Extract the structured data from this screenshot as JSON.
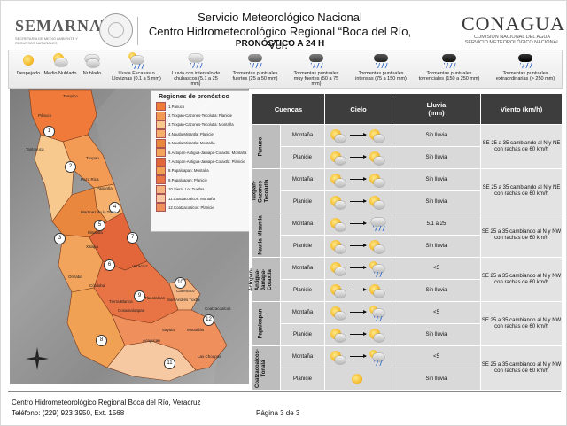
{
  "header": {
    "org_left": "SEMARNAT",
    "org_left_sub": "SECRETARÍA DE MEDIO AMBIENTE Y RECURSOS NATURALES",
    "title_line1": "Servicio Meteorológico Nacional",
    "title_line2": "Centro Hidrometeorológico Regional “Boca del Río, Ver.”",
    "title_line3": "PRONÓSTICO A 24 H",
    "org_right": "CONAGUA",
    "org_right_sub": "COMISIÓN NACIONAL DEL AGUA SERVICIO METEOROLÓGICO NACIONAL"
  },
  "legend": [
    {
      "label": "Despejado",
      "icon": "sun-icon"
    },
    {
      "label": "Medio Nublado",
      "icon": "partly-cloudy-icon"
    },
    {
      "label": "Nublado",
      "icon": "cloudy-icon"
    },
    {
      "label": "Lluvia Escasas o Lloviznas (0.1 a 5 mm)",
      "icon": "drizzle-icon"
    },
    {
      "label": "Lluvia con intervalo de chubascos (5.1 a 25 mm)",
      "icon": "showers-icon"
    },
    {
      "label": "Tormentas puntuales fuertes (25 a 50 mm)",
      "icon": "storm-strong-icon"
    },
    {
      "label": "Tormentas puntuales muy fuertes (50 a 75 mm)",
      "icon": "storm-very-strong-icon"
    },
    {
      "label": "Tormentas puntuales intensas (75 a 150 mm)",
      "icon": "storm-intense-icon"
    },
    {
      "label": "Tormentas puntuales torrenciales (150 a 250 mm)",
      "icon": "storm-torrential-icon"
    },
    {
      "label": "Tormentas puntuales extraordinarias (> 250 mm)",
      "icon": "storm-extraordinary-icon"
    }
  ],
  "map": {
    "legend_title": "Regiones de pronóstico",
    "regions": [
      {
        "label": "1.Pánuco",
        "color": "#f07a3a"
      },
      {
        "label": "2.Tuxpan-Cazones-Tecolutla: Planicie",
        "color": "#f39a55"
      },
      {
        "label": "3.Tuxpan-Cazones-Tecolutla: Montaña",
        "color": "#f7c98f"
      },
      {
        "label": "4.Nautla-Misantla: Planicie",
        "color": "#f5b06e"
      },
      {
        "label": "5.Nautla-Misantla: Montaña",
        "color": "#e8873d"
      },
      {
        "label": "6.Actopan-Antigua-Jamapa-Cotaxtla: Montaña",
        "color": "#f2a45c"
      },
      {
        "label": "7.Actopan-Antigua-Jamapa-Cotaxtla: Planicie",
        "color": "#e2663a"
      },
      {
        "label": "8.Papaloapan: Montaña",
        "color": "#f0a154"
      },
      {
        "label": "9.Papaloapan: Planicie",
        "color": "#e87446"
      },
      {
        "label": "10.Sierra Los Tuxtlas",
        "color": "#f4b582"
      },
      {
        "label": "11.Coatzacoalcos: Montaña",
        "color": "#f7c9a2"
      },
      {
        "label": "12.Coatzacoalcos: Planicie",
        "color": "#ef8f5c"
      }
    ],
    "region_numbers": [
      "1",
      "2",
      "3",
      "4",
      "5",
      "6",
      "7",
      "8",
      "9",
      "10",
      "11",
      "12"
    ],
    "places": [
      "Pánuco",
      "Tampico",
      "Tantoyuca",
      "Tuxpan",
      "Poza Rica",
      "Papantla",
      "Martínez de la Torre",
      "Misantla",
      "Xalapa",
      "Veracruz",
      "Orizaba",
      "Córdoba",
      "Cosamaloapan",
      "Tlacotalpan",
      "San Andrés Tuxtla",
      "Acayucan",
      "Coatzacoalcos",
      "Minatitlán",
      "Las Choapas",
      "Tierra Blanca",
      "Catemaco",
      "Sayula"
    ]
  },
  "table": {
    "headers": {
      "cuencas": "Cuencas",
      "cielo": "Cielo",
      "lluvia": "Lluvia\n(mm)",
      "viento": "Viento (km/h)"
    },
    "basins": [
      {
        "name": "Pánuco",
        "rows": [
          {
            "zone": "Montaña",
            "sky_from": "partly-cloudy",
            "sky_to": "partly-cloudy",
            "rain": "Sin lluvia",
            "wind": "SE 25 a 35 cambiando al N y NE con rachas de 60 km/h"
          },
          {
            "zone": "Planicie",
            "sky_from": "partly-cloudy",
            "sky_to": "partly-cloudy",
            "rain": "Sin lluvia",
            "wind": ""
          }
        ]
      },
      {
        "name": "Tuxpan-Cazones-Tecolutla",
        "rows": [
          {
            "zone": "Montaña",
            "sky_from": "partly-cloudy",
            "sky_to": "partly-cloudy",
            "rain": "Sin lluvia",
            "wind": "SE 25 a 35 cambiando al N y NE con rachas de 60 km/h"
          },
          {
            "zone": "Planicie",
            "sky_from": "partly-cloudy",
            "sky_to": "partly-cloudy",
            "rain": "Sin lluvia",
            "wind": ""
          }
        ]
      },
      {
        "name": "Nautla-Misantla",
        "rows": [
          {
            "zone": "Montaña",
            "sky_from": "partly-cloudy",
            "sky_to": "showers",
            "rain": "5.1 a 25",
            "wind": "SE 25 a 35 cambiando al N y NW con rachas de 60 km/h"
          },
          {
            "zone": "Planicie",
            "sky_from": "partly-cloudy",
            "sky_to": "partly-cloudy",
            "rain": "Sin lluvia",
            "wind": ""
          }
        ]
      },
      {
        "name": "Actopan-Antigua-Jamapa-Cotaxtla",
        "rows": [
          {
            "zone": "Montaña",
            "sky_from": "partly-cloudy",
            "sky_to": "drizzle",
            "rain": "<5",
            "wind": "SE 25 a 35 cambiando al N y NW con rachas de 60 km/h"
          },
          {
            "zone": "Planicie",
            "sky_from": "partly-cloudy",
            "sky_to": "partly-cloudy",
            "rain": "Sin lluvia",
            "wind": ""
          }
        ]
      },
      {
        "name": "Papaloapan",
        "rows": [
          {
            "zone": "Montaña",
            "sky_from": "partly-cloudy",
            "sky_to": "drizzle",
            "rain": "<5",
            "wind": "SE 25 a 35 cambiando al N y NW con rachas de 60 km/h"
          },
          {
            "zone": "Planicie",
            "sky_from": "partly-cloudy",
            "sky_to": "partly-cloudy",
            "rain": "Sin lluvia",
            "wind": ""
          }
        ]
      },
      {
        "name": "Coatzacoalcos-Tonalá",
        "rows": [
          {
            "zone": "Montaña",
            "sky_from": "partly-cloudy",
            "sky_to": "drizzle",
            "rain": "<5",
            "wind": "SE 25 a 35 cambiando al N y NW con rachas de 60 km/h"
          },
          {
            "zone": "Planicie",
            "sky_from": "sun",
            "sky_to": "",
            "rain": "Sin lluvia",
            "wind": ""
          }
        ]
      }
    ]
  },
  "footer": {
    "line1": "Centro Hidrometeorológico Regional Boca del Río, Veracruz",
    "line2": "Teléfono: (229) 923 3950, Ext. 1568",
    "page": "Página 3 de 3"
  }
}
